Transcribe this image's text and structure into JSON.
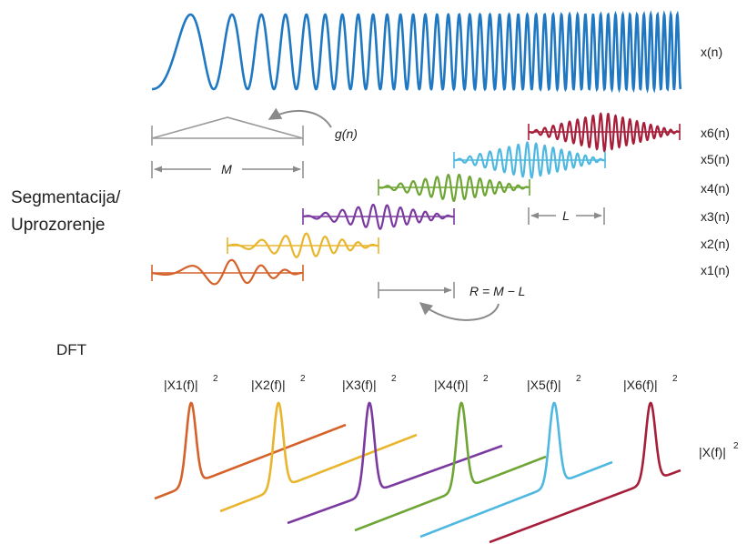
{
  "colors": {
    "signal": "#1f78c1",
    "window": "#9a9a9a",
    "arrow": "#8a8a8a",
    "text": "#222222",
    "segments": [
      "#d4622a",
      "#e8b52c",
      "#7b3aa0",
      "#6ea535",
      "#4fb8e0",
      "#a51e3a"
    ]
  },
  "labels": {
    "signal": "x(n)",
    "window": "g(n)",
    "window_length": "M",
    "overlap": "L",
    "hop": "R = M − L",
    "section_segmentation_line1": "Segmentacija/",
    "section_segmentation_line2": "Uprozorenje",
    "section_dft": "DFT",
    "total_spectrum": "|X(f)|",
    "total_spectrum_exp": "2"
  },
  "segments": [
    {
      "label": "x1(n)",
      "spectrum_label": "|X1(f)|",
      "spectrum_exp": "2"
    },
    {
      "label": "x2(n)",
      "spectrum_label": "|X2(f)|",
      "spectrum_exp": "2"
    },
    {
      "label": "x3(n)",
      "spectrum_label": "|X3(f)|",
      "spectrum_exp": "2"
    },
    {
      "label": "x4(n)",
      "spectrum_label": "|X4(f)|",
      "spectrum_exp": "2"
    },
    {
      "label": "x5(n)",
      "spectrum_label": "|X5(f)|",
      "spectrum_exp": "2"
    },
    {
      "label": "x6(n)",
      "spectrum_label": "|X6(f)|",
      "spectrum_exp": "2"
    }
  ]
}
